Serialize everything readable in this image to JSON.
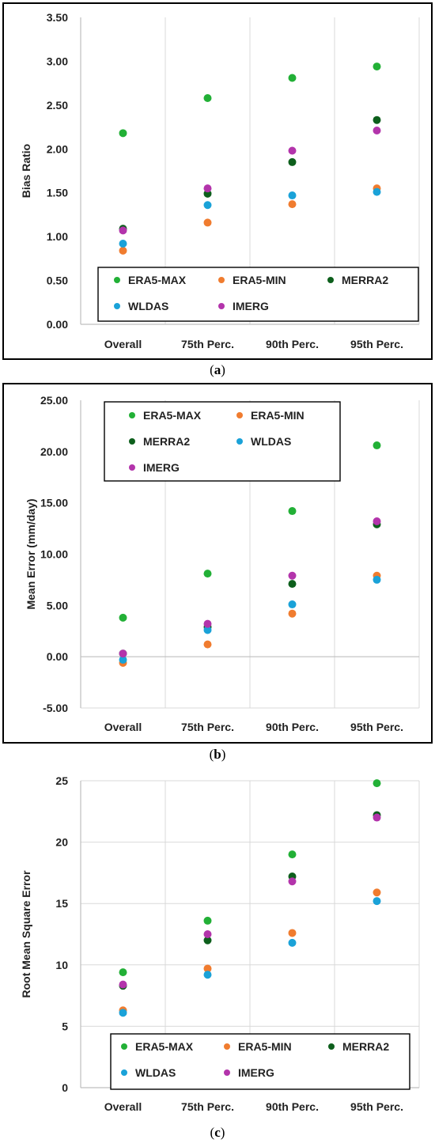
{
  "captions": [
    "a",
    "b",
    "c"
  ],
  "colors": {
    "ERA5-MAX": "#22b036",
    "ERA5-MIN": "#f07c2f",
    "MERRA2": "#0d5f1c",
    "WLDAS": "#1aa2d8",
    "IMERG": "#b334ab",
    "grid": "#d9d9d9",
    "axis": "#bfbfbf"
  },
  "chart_data": [
    {
      "type": "scatter",
      "ylabel": "Bias Ratio",
      "xlabel": "",
      "categories": [
        "Overall",
        "75th Perc.",
        "90th Perc.",
        "95th Perc."
      ],
      "ylim": [
        0,
        3.5
      ],
      "yticks": [
        "0.00",
        "0.50",
        "1.00",
        "1.50",
        "2.00",
        "2.50",
        "3.00",
        "3.50"
      ],
      "grid": "vertical",
      "legend_position": "bottom",
      "legend_rows": [
        [
          "ERA5-MAX",
          "ERA5-MIN",
          "MERRA2"
        ],
        [
          "WLDAS",
          "IMERG"
        ]
      ],
      "series": [
        {
          "name": "ERA5-MAX",
          "values": [
            2.18,
            2.58,
            2.81,
            2.94
          ]
        },
        {
          "name": "ERA5-MIN",
          "values": [
            0.84,
            1.16,
            1.37,
            1.55
          ]
        },
        {
          "name": "MERRA2",
          "values": [
            1.09,
            1.49,
            1.85,
            2.33
          ]
        },
        {
          "name": "WLDAS",
          "values": [
            0.92,
            1.36,
            1.47,
            1.51
          ]
        },
        {
          "name": "IMERG",
          "values": [
            1.07,
            1.55,
            1.98,
            2.21
          ]
        }
      ]
    },
    {
      "type": "scatter",
      "ylabel": "Mean Error (mm/day)",
      "xlabel": "",
      "categories": [
        "Overall",
        "75th Perc.",
        "90th Perc.",
        "95th Perc."
      ],
      "ylim": [
        -5,
        25
      ],
      "yticks": [
        "-5.00",
        "0.00",
        "5.00",
        "10.00",
        "15.00",
        "20.00",
        "25.00"
      ],
      "grid": "vertical",
      "legend_position": "top-left",
      "legend_rows": [
        [
          "ERA5-MAX",
          "ERA5-MIN"
        ],
        [
          "MERRA2",
          "WLDAS"
        ],
        [
          "IMERG"
        ]
      ],
      "series": [
        {
          "name": "ERA5-MAX",
          "values": [
            3.8,
            8.1,
            14.2,
            20.6
          ]
        },
        {
          "name": "ERA5-MIN",
          "values": [
            -0.6,
            1.2,
            4.2,
            7.9
          ]
        },
        {
          "name": "MERRA2",
          "values": [
            0.3,
            2.9,
            7.1,
            12.9
          ]
        },
        {
          "name": "WLDAS",
          "values": [
            -0.3,
            2.6,
            5.1,
            7.5
          ]
        },
        {
          "name": "IMERG",
          "values": [
            0.3,
            3.2,
            7.9,
            13.2
          ]
        }
      ]
    },
    {
      "type": "scatter",
      "ylabel": "Root Mean Square Error",
      "xlabel": "",
      "categories": [
        "Overall",
        "75th Perc.",
        "90th Perc.",
        "95th Perc."
      ],
      "ylim": [
        0,
        25
      ],
      "yticks": [
        "0",
        "5",
        "10",
        "15",
        "20",
        "25"
      ],
      "grid": "both",
      "legend_position": "bottom",
      "legend_rows": [
        [
          "ERA5-MAX",
          "ERA5-MIN",
          "MERRA2"
        ],
        [
          "WLDAS",
          "IMERG"
        ]
      ],
      "series": [
        {
          "name": "ERA5-MAX",
          "values": [
            9.4,
            13.6,
            19.0,
            24.8
          ]
        },
        {
          "name": "ERA5-MIN",
          "values": [
            6.3,
            9.7,
            12.6,
            15.9
          ]
        },
        {
          "name": "MERRA2",
          "values": [
            8.3,
            12.0,
            17.2,
            22.2
          ]
        },
        {
          "name": "WLDAS",
          "values": [
            6.1,
            9.2,
            11.8,
            15.2
          ]
        },
        {
          "name": "IMERG",
          "values": [
            8.4,
            12.5,
            16.8,
            22.0
          ]
        }
      ]
    }
  ]
}
